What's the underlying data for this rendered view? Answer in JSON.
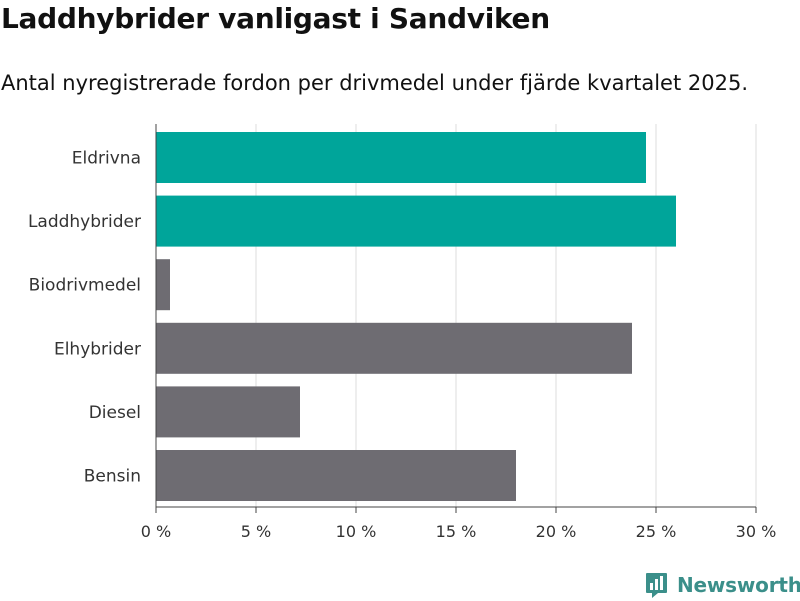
{
  "header": {
    "title": "Laddhybrider vanligast i Sandviken",
    "subtitle": "Antal nyregistrerade fordon per drivmedel under fjärde kvartalet 2025."
  },
  "chart_data": {
    "type": "bar",
    "orientation": "horizontal",
    "title": "Laddhybrider vanligast i Sandviken",
    "subtitle": "Antal nyregistrerade fordon per drivmedel under fjärde kvartalet 2025.",
    "xlabel": "",
    "ylabel": "",
    "categories": [
      "Eldrivna",
      "Laddhybrider",
      "Biodrivmedel",
      "Elhybrider",
      "Diesel",
      "Bensin"
    ],
    "values": [
      24.5,
      26.0,
      0.7,
      23.8,
      7.2,
      18.0
    ],
    "highlight": [
      true,
      true,
      false,
      false,
      false,
      false
    ],
    "xlim": [
      0,
      30
    ],
    "ticks": [
      0,
      5,
      10,
      15,
      20,
      25,
      30
    ],
    "tick_labels": [
      "0 %",
      "5 %",
      "10 %",
      "15 %",
      "20 %",
      "25 %",
      "30 %"
    ],
    "grid": true,
    "legend": "none",
    "colors": {
      "highlight": "#00a59a",
      "default": "#6e6c72",
      "grid": "#dddddd",
      "axis": "#444444"
    }
  },
  "brand": {
    "name": "Newsworthy",
    "color": "#3b8f8a",
    "icon": "newsworthy-logo-icon"
  }
}
